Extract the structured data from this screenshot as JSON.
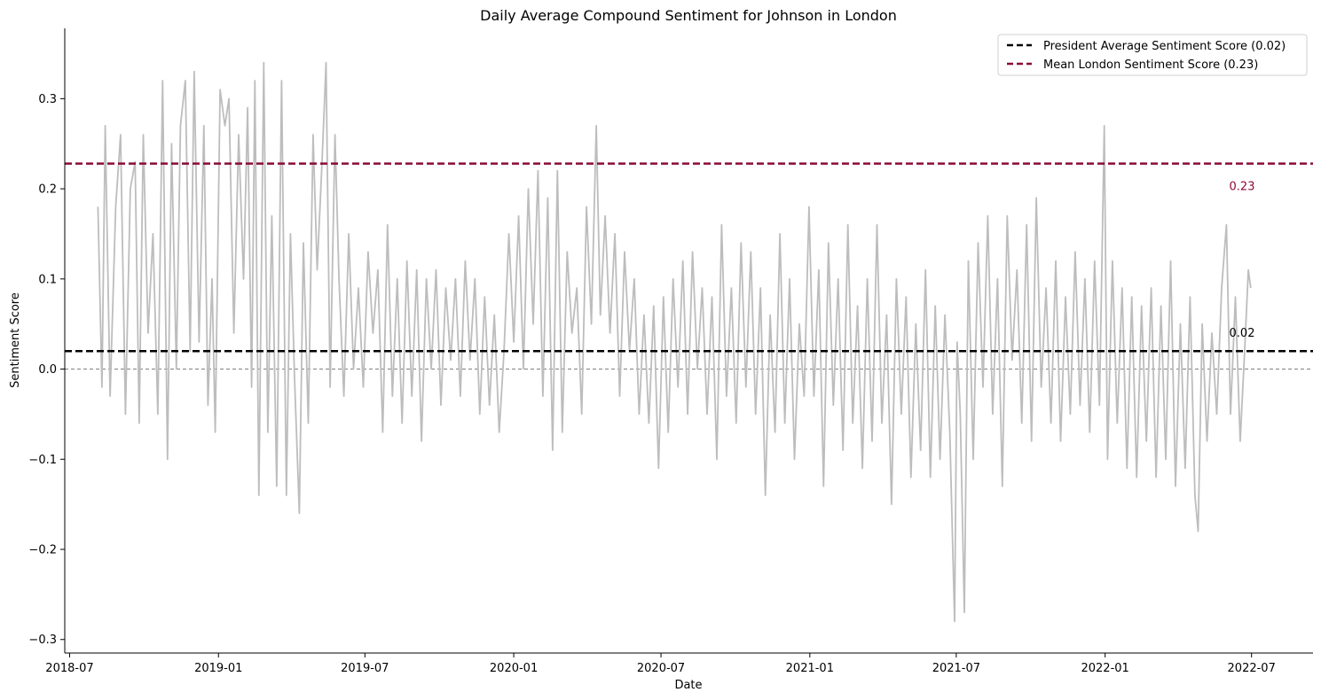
{
  "chart_data": {
    "type": "line",
    "title": "Daily Average Compound Sentiment for Johnson in London",
    "xlabel": "Date",
    "ylabel": "Sentiment Score",
    "x_range": [
      "2018-06-25",
      "2022-09-15"
    ],
    "y_range": [
      -0.315,
      0.378
    ],
    "x_ticks": [
      "2018-07",
      "2019-01",
      "2019-07",
      "2020-01",
      "2020-07",
      "2021-01",
      "2021-07",
      "2022-01",
      "2022-07"
    ],
    "y_ticks": [
      -0.3,
      -0.2,
      -0.1,
      0.0,
      0.1,
      0.2,
      0.3
    ],
    "y_tick_labels": [
      "−0.3",
      "−0.2",
      "−0.1",
      "0.0",
      "0.1",
      "0.2",
      "0.3"
    ],
    "grid": false,
    "legend_position": "top-right",
    "series": [
      {
        "color": "#bdbdbd",
        "points": [
          [
            "2018-08-05",
            0.18
          ],
          [
            "2018-08-10",
            -0.02
          ],
          [
            "2018-08-14",
            0.27
          ],
          [
            "2018-08-20",
            -0.03
          ],
          [
            "2018-08-27",
            0.18
          ],
          [
            "2018-09-02",
            0.26
          ],
          [
            "2018-09-08",
            -0.05
          ],
          [
            "2018-09-14",
            0.2
          ],
          [
            "2018-09-20",
            0.23
          ],
          [
            "2018-09-25",
            -0.06
          ],
          [
            "2018-09-30",
            0.26
          ],
          [
            "2018-10-06",
            0.04
          ],
          [
            "2018-10-12",
            0.15
          ],
          [
            "2018-10-18",
            -0.05
          ],
          [
            "2018-10-24",
            0.32
          ],
          [
            "2018-10-30",
            -0.1
          ],
          [
            "2018-11-04",
            0.25
          ],
          [
            "2018-11-10",
            0.0
          ],
          [
            "2018-11-15",
            0.27
          ],
          [
            "2018-11-21",
            0.32
          ],
          [
            "2018-11-27",
            0.02
          ],
          [
            "2018-12-02",
            0.33
          ],
          [
            "2018-12-08",
            0.03
          ],
          [
            "2018-12-14",
            0.27
          ],
          [
            "2018-12-19",
            -0.04
          ],
          [
            "2018-12-24",
            0.1
          ],
          [
            "2018-12-28",
            -0.07
          ],
          [
            "2019-01-03",
            0.31
          ],
          [
            "2019-01-09",
            0.27
          ],
          [
            "2019-01-14",
            0.3
          ],
          [
            "2019-01-20",
            0.04
          ],
          [
            "2019-01-26",
            0.26
          ],
          [
            "2019-02-01",
            0.1
          ],
          [
            "2019-02-06",
            0.29
          ],
          [
            "2019-02-11",
            -0.02
          ],
          [
            "2019-02-15",
            0.32
          ],
          [
            "2019-02-20",
            -0.14
          ],
          [
            "2019-02-26",
            0.34
          ],
          [
            "2019-03-03",
            -0.07
          ],
          [
            "2019-03-08",
            0.17
          ],
          [
            "2019-03-14",
            -0.13
          ],
          [
            "2019-03-20",
            0.32
          ],
          [
            "2019-03-26",
            -0.14
          ],
          [
            "2019-03-31",
            0.15
          ],
          [
            "2019-04-05",
            -0.01
          ],
          [
            "2019-04-11",
            -0.16
          ],
          [
            "2019-04-16",
            0.14
          ],
          [
            "2019-04-22",
            -0.06
          ],
          [
            "2019-04-28",
            0.26
          ],
          [
            "2019-05-03",
            0.11
          ],
          [
            "2019-05-09",
            0.23
          ],
          [
            "2019-05-14",
            0.34
          ],
          [
            "2019-05-19",
            -0.02
          ],
          [
            "2019-05-25",
            0.26
          ],
          [
            "2019-05-30",
            0.1
          ],
          [
            "2019-06-05",
            -0.03
          ],
          [
            "2019-06-11",
            0.15
          ],
          [
            "2019-06-17",
            0.0
          ],
          [
            "2019-06-23",
            0.09
          ],
          [
            "2019-06-29",
            -0.02
          ],
          [
            "2019-07-05",
            0.13
          ],
          [
            "2019-07-11",
            0.04
          ],
          [
            "2019-07-17",
            0.11
          ],
          [
            "2019-07-23",
            -0.07
          ],
          [
            "2019-07-29",
            0.16
          ],
          [
            "2019-08-04",
            -0.03
          ],
          [
            "2019-08-10",
            0.1
          ],
          [
            "2019-08-16",
            -0.06
          ],
          [
            "2019-08-22",
            0.12
          ],
          [
            "2019-08-28",
            -0.03
          ],
          [
            "2019-09-03",
            0.11
          ],
          [
            "2019-09-09",
            -0.08
          ],
          [
            "2019-09-15",
            0.1
          ],
          [
            "2019-09-21",
            0.0
          ],
          [
            "2019-09-27",
            0.11
          ],
          [
            "2019-10-03",
            -0.04
          ],
          [
            "2019-10-09",
            0.09
          ],
          [
            "2019-10-15",
            0.01
          ],
          [
            "2019-10-21",
            0.1
          ],
          [
            "2019-10-27",
            -0.03
          ],
          [
            "2019-11-02",
            0.12
          ],
          [
            "2019-11-08",
            0.01
          ],
          [
            "2019-11-14",
            0.1
          ],
          [
            "2019-11-20",
            -0.05
          ],
          [
            "2019-11-26",
            0.08
          ],
          [
            "2019-12-02",
            -0.04
          ],
          [
            "2019-12-08",
            0.06
          ],
          [
            "2019-12-14",
            -0.07
          ],
          [
            "2019-12-20",
            0.02
          ],
          [
            "2019-12-26",
            0.15
          ],
          [
            "2020-01-01",
            0.03
          ],
          [
            "2020-01-07",
            0.17
          ],
          [
            "2020-01-13",
            0.0
          ],
          [
            "2020-01-19",
            0.2
          ],
          [
            "2020-01-25",
            0.05
          ],
          [
            "2020-01-31",
            0.22
          ],
          [
            "2020-02-06",
            -0.03
          ],
          [
            "2020-02-12",
            0.19
          ],
          [
            "2020-02-18",
            -0.09
          ],
          [
            "2020-02-24",
            0.22
          ],
          [
            "2020-03-01",
            -0.07
          ],
          [
            "2020-03-07",
            0.13
          ],
          [
            "2020-03-13",
            0.04
          ],
          [
            "2020-03-19",
            0.09
          ],
          [
            "2020-03-25",
            -0.05
          ],
          [
            "2020-03-31",
            0.18
          ],
          [
            "2020-04-06",
            0.05
          ],
          [
            "2020-04-12",
            0.27
          ],
          [
            "2020-04-17",
            0.06
          ],
          [
            "2020-04-23",
            0.17
          ],
          [
            "2020-04-29",
            0.04
          ],
          [
            "2020-05-05",
            0.15
          ],
          [
            "2020-05-11",
            -0.03
          ],
          [
            "2020-05-17",
            0.13
          ],
          [
            "2020-05-23",
            0.02
          ],
          [
            "2020-05-29",
            0.1
          ],
          [
            "2020-06-04",
            -0.05
          ],
          [
            "2020-06-10",
            0.06
          ],
          [
            "2020-06-16",
            -0.06
          ],
          [
            "2020-06-22",
            0.07
          ],
          [
            "2020-06-28",
            -0.11
          ],
          [
            "2020-07-04",
            0.08
          ],
          [
            "2020-07-10",
            -0.07
          ],
          [
            "2020-07-16",
            0.1
          ],
          [
            "2020-07-22",
            -0.02
          ],
          [
            "2020-07-28",
            0.12
          ],
          [
            "2020-08-03",
            -0.05
          ],
          [
            "2020-08-09",
            0.13
          ],
          [
            "2020-08-15",
            0.0
          ],
          [
            "2020-08-21",
            0.09
          ],
          [
            "2020-08-27",
            -0.05
          ],
          [
            "2020-09-02",
            0.08
          ],
          [
            "2020-09-08",
            -0.1
          ],
          [
            "2020-09-14",
            0.16
          ],
          [
            "2020-09-20",
            -0.03
          ],
          [
            "2020-09-26",
            0.09
          ],
          [
            "2020-10-02",
            -0.06
          ],
          [
            "2020-10-08",
            0.14
          ],
          [
            "2020-10-14",
            -0.02
          ],
          [
            "2020-10-20",
            0.13
          ],
          [
            "2020-10-26",
            -0.05
          ],
          [
            "2020-11-01",
            0.09
          ],
          [
            "2020-11-07",
            -0.14
          ],
          [
            "2020-11-13",
            0.06
          ],
          [
            "2020-11-19",
            -0.07
          ],
          [
            "2020-11-25",
            0.15
          ],
          [
            "2020-12-01",
            -0.06
          ],
          [
            "2020-12-07",
            0.1
          ],
          [
            "2020-12-13",
            -0.1
          ],
          [
            "2020-12-19",
            0.05
          ],
          [
            "2020-12-25",
            -0.03
          ],
          [
            "2020-12-31",
            0.18
          ],
          [
            "2021-01-06",
            -0.03
          ],
          [
            "2021-01-12",
            0.11
          ],
          [
            "2021-01-18",
            -0.13
          ],
          [
            "2021-01-24",
            0.14
          ],
          [
            "2021-01-30",
            -0.04
          ],
          [
            "2021-02-05",
            0.1
          ],
          [
            "2021-02-11",
            -0.09
          ],
          [
            "2021-02-17",
            0.16
          ],
          [
            "2021-02-23",
            -0.06
          ],
          [
            "2021-03-01",
            0.07
          ],
          [
            "2021-03-07",
            -0.11
          ],
          [
            "2021-03-13",
            0.1
          ],
          [
            "2021-03-19",
            -0.08
          ],
          [
            "2021-03-25",
            0.16
          ],
          [
            "2021-03-31",
            -0.06
          ],
          [
            "2021-04-06",
            0.06
          ],
          [
            "2021-04-12",
            -0.15
          ],
          [
            "2021-04-18",
            0.1
          ],
          [
            "2021-04-24",
            -0.05
          ],
          [
            "2021-04-30",
            0.08
          ],
          [
            "2021-05-06",
            -0.12
          ],
          [
            "2021-05-12",
            0.05
          ],
          [
            "2021-05-18",
            -0.09
          ],
          [
            "2021-05-24",
            0.11
          ],
          [
            "2021-05-30",
            -0.12
          ],
          [
            "2021-06-05",
            0.07
          ],
          [
            "2021-06-11",
            -0.1
          ],
          [
            "2021-06-17",
            0.06
          ],
          [
            "2021-06-23",
            -0.07
          ],
          [
            "2021-06-29",
            -0.28
          ],
          [
            "2021-07-02",
            0.03
          ],
          [
            "2021-07-06",
            -0.05
          ],
          [
            "2021-07-11",
            -0.27
          ],
          [
            "2021-07-16",
            0.12
          ],
          [
            "2021-07-22",
            -0.1
          ],
          [
            "2021-07-28",
            0.14
          ],
          [
            "2021-08-03",
            -0.02
          ],
          [
            "2021-08-09",
            0.17
          ],
          [
            "2021-08-15",
            -0.05
          ],
          [
            "2021-08-21",
            0.1
          ],
          [
            "2021-08-27",
            -0.13
          ],
          [
            "2021-09-02",
            0.17
          ],
          [
            "2021-09-08",
            0.01
          ],
          [
            "2021-09-14",
            0.11
          ],
          [
            "2021-09-20",
            -0.06
          ],
          [
            "2021-09-26",
            0.16
          ],
          [
            "2021-10-02",
            -0.08
          ],
          [
            "2021-10-08",
            0.19
          ],
          [
            "2021-10-14",
            -0.02
          ],
          [
            "2021-10-20",
            0.09
          ],
          [
            "2021-10-26",
            -0.06
          ],
          [
            "2021-11-01",
            0.12
          ],
          [
            "2021-11-07",
            -0.08
          ],
          [
            "2021-11-13",
            0.08
          ],
          [
            "2021-11-19",
            -0.05
          ],
          [
            "2021-11-25",
            0.13
          ],
          [
            "2021-12-01",
            -0.04
          ],
          [
            "2021-12-07",
            0.1
          ],
          [
            "2021-12-13",
            -0.07
          ],
          [
            "2021-12-19",
            0.12
          ],
          [
            "2021-12-25",
            -0.04
          ],
          [
            "2021-12-31",
            0.27
          ],
          [
            "2022-01-04",
            -0.1
          ],
          [
            "2022-01-10",
            0.12
          ],
          [
            "2022-01-16",
            -0.06
          ],
          [
            "2022-01-22",
            0.09
          ],
          [
            "2022-01-28",
            -0.11
          ],
          [
            "2022-02-03",
            0.08
          ],
          [
            "2022-02-09",
            -0.12
          ],
          [
            "2022-02-15",
            0.07
          ],
          [
            "2022-02-21",
            -0.08
          ],
          [
            "2022-02-27",
            0.09
          ],
          [
            "2022-03-05",
            -0.12
          ],
          [
            "2022-03-11",
            0.07
          ],
          [
            "2022-03-17",
            -0.1
          ],
          [
            "2022-03-23",
            0.12
          ],
          [
            "2022-03-29",
            -0.13
          ],
          [
            "2022-04-04",
            0.05
          ],
          [
            "2022-04-10",
            -0.11
          ],
          [
            "2022-04-16",
            0.08
          ],
          [
            "2022-04-22",
            -0.14
          ],
          [
            "2022-04-26",
            -0.18
          ],
          [
            "2022-05-01",
            0.05
          ],
          [
            "2022-05-07",
            -0.08
          ],
          [
            "2022-05-13",
            0.04
          ],
          [
            "2022-05-19",
            -0.05
          ],
          [
            "2022-05-25",
            0.09
          ],
          [
            "2022-05-31",
            0.16
          ],
          [
            "2022-06-05",
            -0.05
          ],
          [
            "2022-06-11",
            0.08
          ],
          [
            "2022-06-17",
            -0.08
          ],
          [
            "2022-06-23",
            0.03
          ],
          [
            "2022-06-27",
            0.11
          ],
          [
            "2022-06-30",
            0.09
          ]
        ]
      }
    ],
    "reference_lines": [
      {
        "name": "President Average Sentiment Score (0.02)",
        "value": 0.02,
        "color": "#000000",
        "label": "0.02"
      },
      {
        "name": "Mean London Sentiment Score (0.23)",
        "value": 0.228,
        "color": "#8b0a36",
        "label": "0.23"
      }
    ],
    "zero_line": {
      "value": 0.0,
      "color": "#808080"
    }
  }
}
